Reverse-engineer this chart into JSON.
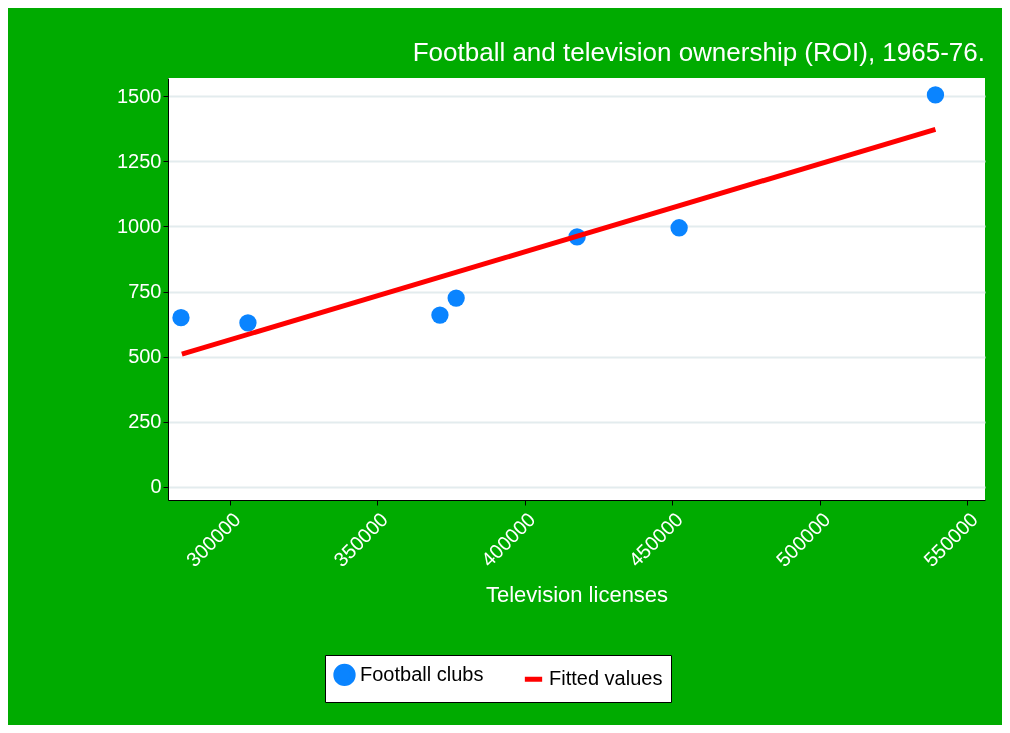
{
  "chart_data": {
    "type": "scatter",
    "title": "Football and television ownership (ROI), 1965-76.",
    "xlabel": "Television licenses",
    "xlim": [
      279000,
      556000
    ],
    "xticks": [
      300000,
      350000,
      400000,
      450000,
      500000,
      550000
    ],
    "ylim": [
      -50,
      1570
    ],
    "yticks": [
      0,
      250,
      500,
      750,
      1000,
      1250,
      1500
    ],
    "grid": "y",
    "legend": "bottom",
    "series": [
      {
        "name": "Football clubs",
        "marker": "circle",
        "color": "#0a84ff",
        "x": [
          283400,
          306100,
          371200,
          376700,
          417700,
          452300,
          539200
        ],
        "values": [
          650,
          630,
          660,
          725,
          960,
          995,
          1505
        ]
      },
      {
        "name": "Fitted values",
        "type": "line",
        "color": "#ff0000",
        "line_style": "solid",
        "x": [
          283700,
          539200
        ],
        "values": [
          510,
          1373
        ]
      }
    ]
  }
}
